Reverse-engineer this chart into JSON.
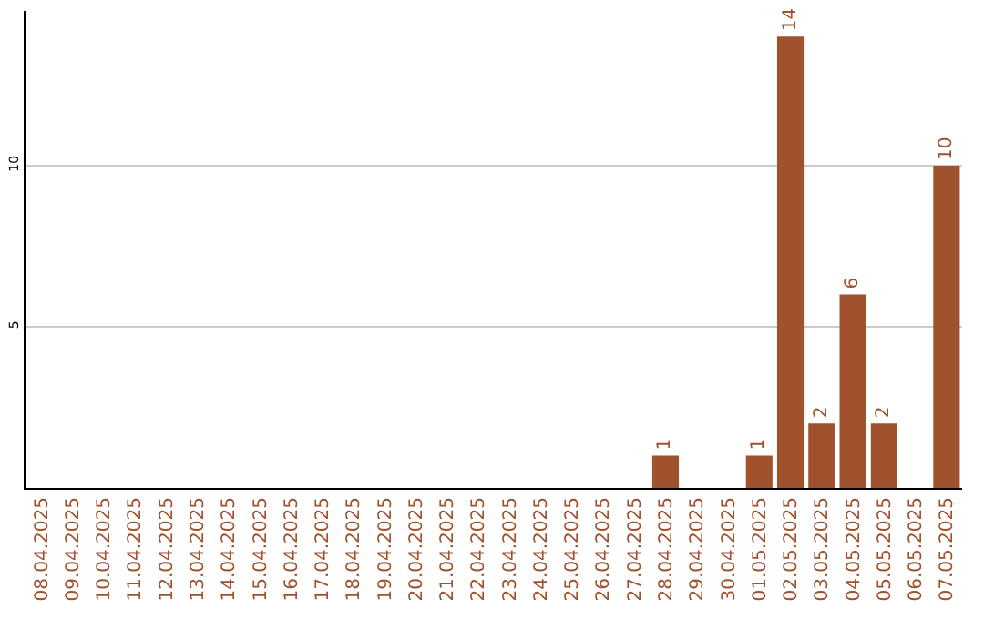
{
  "chart_data": {
    "type": "bar",
    "categories": [
      "08.04.2025",
      "09.04.2025",
      "10.04.2025",
      "11.04.2025",
      "12.04.2025",
      "13.04.2025",
      "14.04.2025",
      "15.04.2025",
      "16.04.2025",
      "17.04.2025",
      "18.04.2025",
      "19.04.2025",
      "20.04.2025",
      "21.04.2025",
      "22.04.2025",
      "23.04.2025",
      "24.04.2025",
      "25.04.2025",
      "26.04.2025",
      "27.04.2025",
      "28.04.2025",
      "29.04.2025",
      "30.04.2025",
      "01.05.2025",
      "02.05.2025",
      "03.05.2025",
      "04.05.2025",
      "05.05.2025",
      "06.05.2025",
      "07.05.2025"
    ],
    "values": [
      0,
      0,
      0,
      0,
      0,
      0,
      0,
      0,
      0,
      0,
      0,
      0,
      0,
      0,
      0,
      0,
      0,
      0,
      0,
      0,
      1,
      0,
      0,
      1,
      14,
      2,
      6,
      2,
      0,
      10
    ],
    "value_labels": [
      null,
      null,
      null,
      null,
      null,
      null,
      null,
      null,
      null,
      null,
      null,
      null,
      null,
      null,
      null,
      null,
      null,
      null,
      null,
      null,
      "1",
      null,
      null,
      "1",
      "14",
      "2",
      "6",
      "2",
      null,
      "10"
    ],
    "color": "#a0522d",
    "ylim": [
      0,
      14.8
    ],
    "yticks": [
      5,
      10
    ],
    "grid": "y",
    "legend": false
  }
}
